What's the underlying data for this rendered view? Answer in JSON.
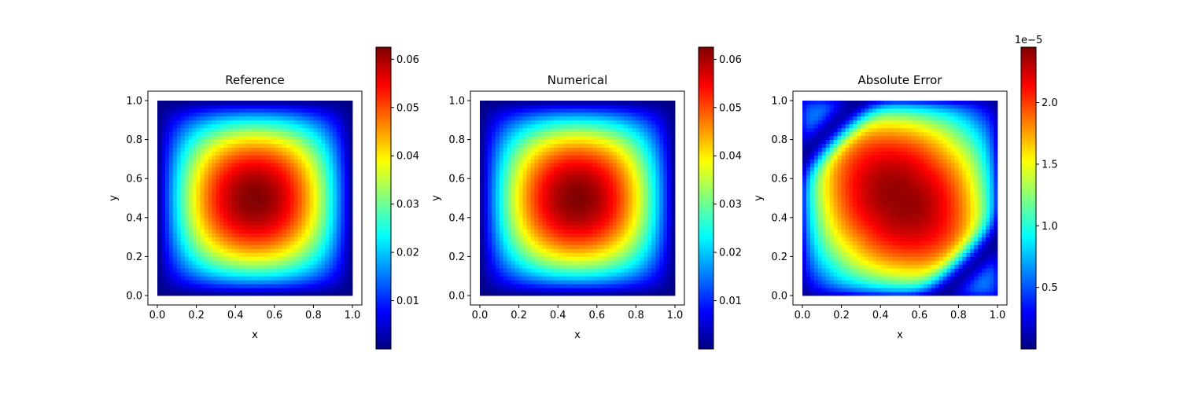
{
  "chart_data": [
    {
      "type": "heatmap",
      "title": "Reference",
      "xlabel": "x",
      "ylabel": "y",
      "xlim": [
        0,
        1
      ],
      "ylim": [
        0,
        1
      ],
      "xticks": [
        "0.0",
        "0.2",
        "0.4",
        "0.6",
        "0.8",
        "1.0"
      ],
      "yticks": [
        "0.0",
        "0.2",
        "0.4",
        "0.6",
        "0.8",
        "1.0"
      ],
      "colormap": "jet",
      "colorbar": {
        "min": 0.0,
        "max": 0.0625,
        "ticks": [
          "0.01",
          "0.02",
          "0.03",
          "0.04",
          "0.05",
          "0.06"
        ],
        "offset_label": ""
      },
      "grid": false,
      "field": "16*x*(1-x)*y*(1-y)/16 * 0.0625 peak at (0.5, 0.5)"
    },
    {
      "type": "heatmap",
      "title": "Numerical",
      "xlabel": "x",
      "ylabel": "y",
      "xlim": [
        0,
        1
      ],
      "ylim": [
        0,
        1
      ],
      "xticks": [
        "0.0",
        "0.2",
        "0.4",
        "0.6",
        "0.8",
        "1.0"
      ],
      "yticks": [
        "0.0",
        "0.2",
        "0.4",
        "0.6",
        "0.8",
        "1.0"
      ],
      "colormap": "jet",
      "colorbar": {
        "min": 0.0,
        "max": 0.0625,
        "ticks": [
          "0.01",
          "0.02",
          "0.03",
          "0.04",
          "0.05",
          "0.06"
        ],
        "offset_label": ""
      },
      "grid": false,
      "field": "16*x*(1-x)*y*(1-y)/16 * 0.0625 peak at (0.5, 0.5)"
    },
    {
      "type": "heatmap",
      "title": "Absolute Error",
      "xlabel": "x",
      "ylabel": "y",
      "xlim": [
        0,
        1
      ],
      "ylim": [
        0,
        1
      ],
      "xticks": [
        "0.0",
        "0.2",
        "0.4",
        "0.6",
        "0.8",
        "1.0"
      ],
      "yticks": [
        "0.0",
        "0.2",
        "0.4",
        "0.6",
        "0.8",
        "1.0"
      ],
      "colormap": "jet",
      "colorbar": {
        "min": 0.0,
        "max": 2.45,
        "ticks": [
          "0.5",
          "1.0",
          "1.5",
          "2.0"
        ],
        "offset_label": "1e−5"
      },
      "grid": false,
      "field": "error peak ~2.4e-5 at (0.5, 0.5), low near (0.1,0.85) and (0.9,0.15)"
    }
  ]
}
